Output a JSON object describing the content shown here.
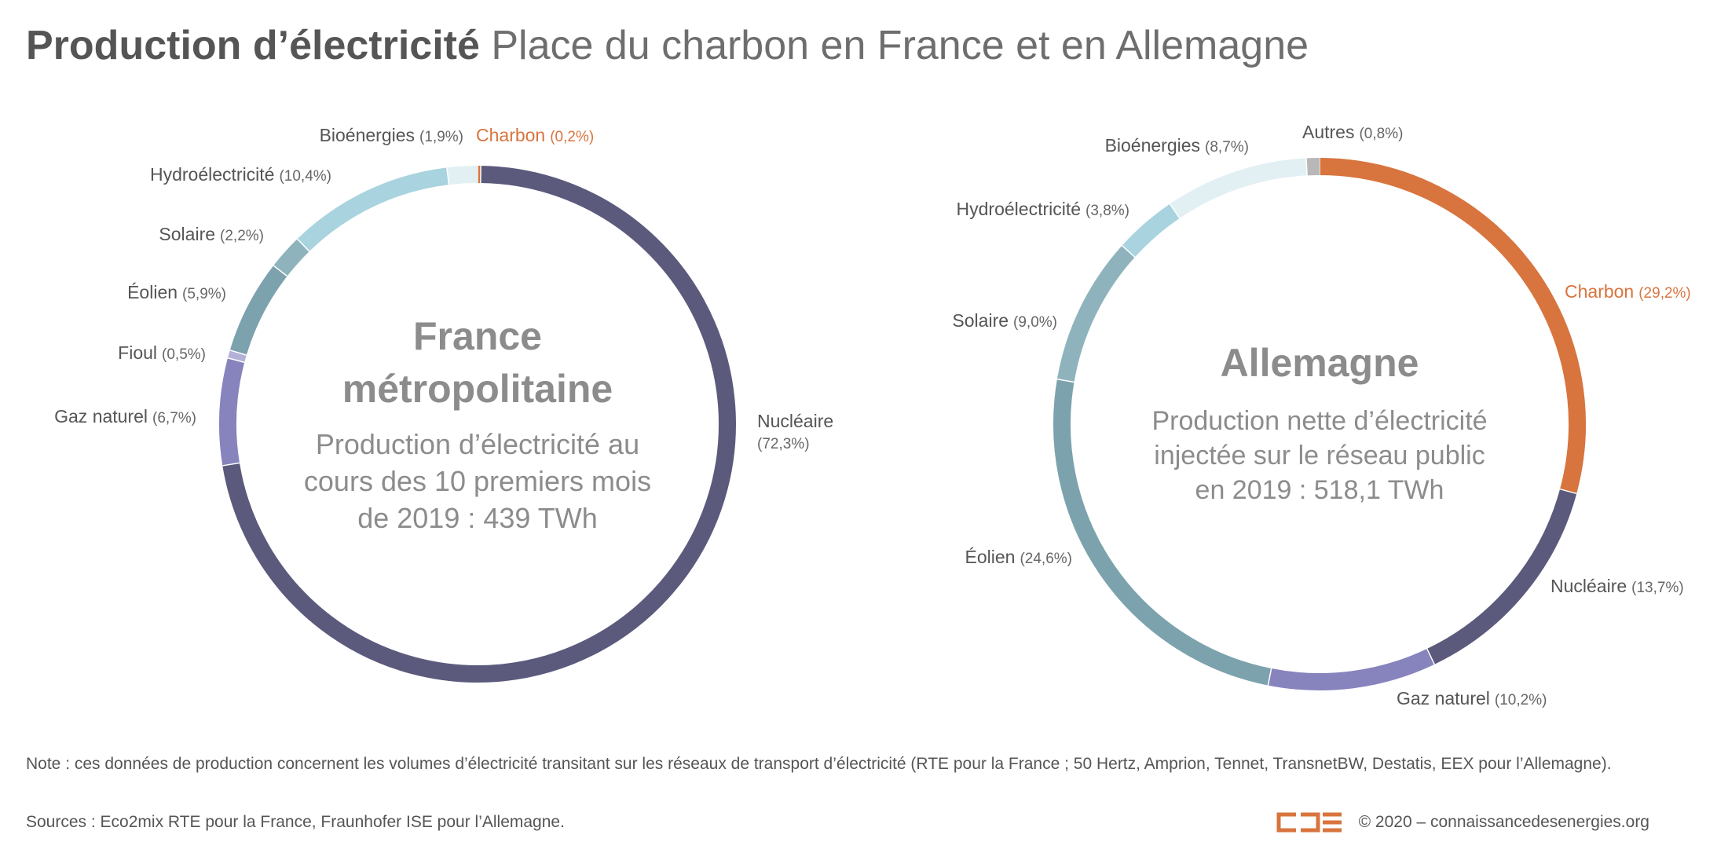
{
  "title": {
    "bold": "Production d’électricité",
    "light": "Place du charbon en France et en Allemagne"
  },
  "colors": {
    "Nucléaire": "#5b5a7c",
    "Charbon": "#d8743e",
    "Bioénergies": "#e2f0f3",
    "Hydroélectricité": "#a9d3de",
    "Solaire": "#8fb3bd",
    "Éolien": "#7ca2ad",
    "Fioul": "#b4b1d9",
    "Gaz naturel": "#8783bd",
    "Autres": "#b8b8b8",
    "label_text": "#555555",
    "label_pct": "#666666",
    "highlight": "#d8743e"
  },
  "chart_data": [
    {
      "type": "pie",
      "style": "donut",
      "center_title": [
        "France",
        "métropolitaine"
      ],
      "center_subtitle": [
        "Production d’électricité au",
        "cours des 10 premiers mois",
        "de 2019 : 439 TWh"
      ],
      "slices": [
        {
          "name": "Charbon",
          "pct_label": "(0,2%)",
          "value": 0.2,
          "highlight": true
        },
        {
          "name": "Nucléaire",
          "pct_label": "(72,3%)",
          "value": 72.3
        },
        {
          "name": "Gaz naturel",
          "pct_label": "(6,7%)",
          "value": 6.7
        },
        {
          "name": "Fioul",
          "pct_label": "(0,5%)",
          "value": 0.5
        },
        {
          "name": "Éolien",
          "pct_label": "(5,9%)",
          "value": 5.9
        },
        {
          "name": "Solaire",
          "pct_label": "(2,2%)",
          "value": 2.2
        },
        {
          "name": "Hydroélectricité",
          "pct_label": "(10,4%)",
          "value": 10.4
        },
        {
          "name": "Bioénergies",
          "pct_label": "(1,9%)",
          "value": 1.9
        }
      ]
    },
    {
      "type": "pie",
      "style": "donut",
      "center_title": [
        "Allemagne"
      ],
      "center_subtitle": [
        "Production nette d’électricité",
        "injectée sur le réseau public",
        "en 2019 : 518,1 TWh"
      ],
      "slices": [
        {
          "name": "Charbon",
          "pct_label": "(29,2%)",
          "value": 29.2,
          "highlight": true
        },
        {
          "name": "Nucléaire",
          "pct_label": "(13,7%)",
          "value": 13.7
        },
        {
          "name": "Gaz naturel",
          "pct_label": "(10,2%)",
          "value": 10.2
        },
        {
          "name": "Éolien",
          "pct_label": "(24,6%)",
          "value": 24.6
        },
        {
          "name": "Solaire",
          "pct_label": "(9,0%)",
          "value": 9.0
        },
        {
          "name": "Hydroélectricité",
          "pct_label": "(3,8%)",
          "value": 3.8
        },
        {
          "name": "Bioénergies",
          "pct_label": "(8,7%)",
          "value": 8.7
        },
        {
          "name": "Autres",
          "pct_label": "(0,8%)",
          "value": 0.8
        }
      ]
    }
  ],
  "footer": {
    "note": "Note : ces données de production concernent les volumes d’électricité transitant sur les réseaux de transport d’électricité (RTE pour la France ; 50 Hertz, Amprion, Tennet, TransnetBW, Destatis, EEX pour l’Allemagne).",
    "sources": "Sources : Eco2mix RTE pour la France, Fraunhofer ISE pour l’Allemagne.",
    "copyright": "© 2020 – connaissancedesenergies.org",
    "logo_text": "CDE"
  }
}
